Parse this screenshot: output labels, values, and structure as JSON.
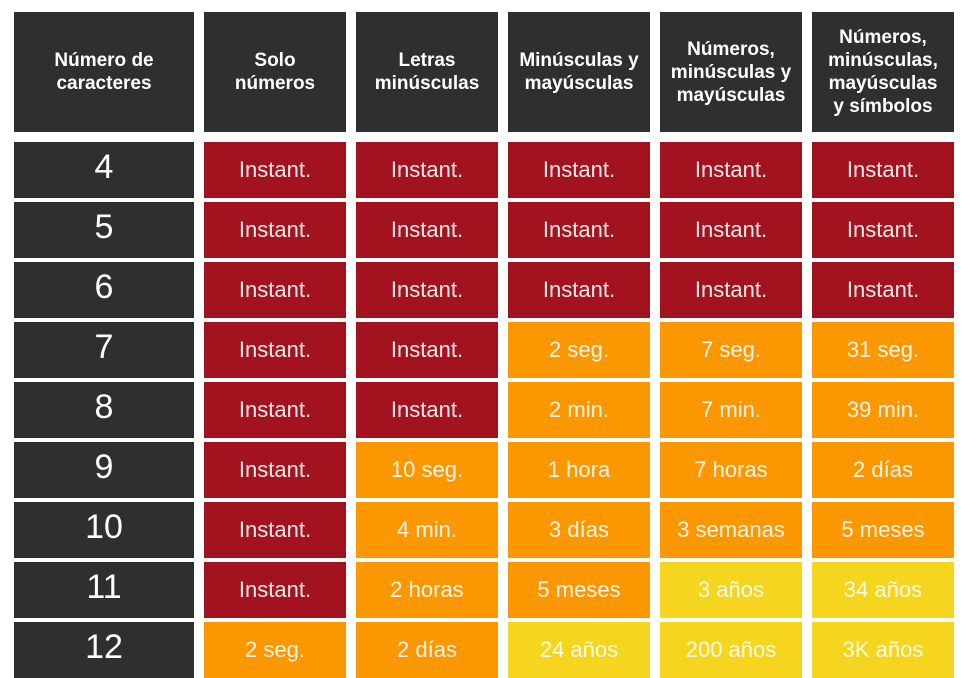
{
  "colors": {
    "header_bg": "#2f2f2f",
    "red": "#a3131f",
    "orange": "#fb9700",
    "yellow": "#f6d51e"
  },
  "headers": [
    "Número de\ncaracteres",
    "Solo\nnúmeros",
    "Letras\nminúsculas",
    "Minúsculas y\nmayúsculas",
    "Números,\nminúsculas y\nmayúsculas",
    "Números,\nminúsculas,\nmayúsculas\ny símbolos"
  ],
  "rows": [
    {
      "chars": "4",
      "cells": [
        [
          "Instant.",
          "red"
        ],
        [
          "Instant.",
          "red"
        ],
        [
          "Instant.",
          "red"
        ],
        [
          "Instant.",
          "red"
        ],
        [
          "Instant.",
          "red"
        ]
      ]
    },
    {
      "chars": "5",
      "cells": [
        [
          "Instant.",
          "red"
        ],
        [
          "Instant.",
          "red"
        ],
        [
          "Instant.",
          "red"
        ],
        [
          "Instant.",
          "red"
        ],
        [
          "Instant.",
          "red"
        ]
      ]
    },
    {
      "chars": "6",
      "cells": [
        [
          "Instant.",
          "red"
        ],
        [
          "Instant.",
          "red"
        ],
        [
          "Instant.",
          "red"
        ],
        [
          "Instant.",
          "red"
        ],
        [
          "Instant.",
          "red"
        ]
      ]
    },
    {
      "chars": "7",
      "cells": [
        [
          "Instant.",
          "red"
        ],
        [
          "Instant.",
          "red"
        ],
        [
          "2 seg.",
          "orange"
        ],
        [
          "7 seg.",
          "orange"
        ],
        [
          "31 seg.",
          "orange"
        ]
      ]
    },
    {
      "chars": "8",
      "cells": [
        [
          "Instant.",
          "red"
        ],
        [
          "Instant.",
          "red"
        ],
        [
          "2 min.",
          "orange"
        ],
        [
          "7 min.",
          "orange"
        ],
        [
          "39 min.",
          "orange"
        ]
      ]
    },
    {
      "chars": "9",
      "cells": [
        [
          "Instant.",
          "red"
        ],
        [
          "10 seg.",
          "orange"
        ],
        [
          "1 hora",
          "orange"
        ],
        [
          "7 horas",
          "orange"
        ],
        [
          "2 días",
          "orange"
        ]
      ]
    },
    {
      "chars": "10",
      "cells": [
        [
          "Instant.",
          "red"
        ],
        [
          "4 min.",
          "orange"
        ],
        [
          "3 días",
          "orange"
        ],
        [
          "3 semanas",
          "orange"
        ],
        [
          "5 meses",
          "orange"
        ]
      ]
    },
    {
      "chars": "11",
      "cells": [
        [
          "Instant.",
          "red"
        ],
        [
          "2 horas",
          "orange"
        ],
        [
          "5 meses",
          "orange"
        ],
        [
          "3 años",
          "yellow"
        ],
        [
          "34 años",
          "yellow"
        ]
      ]
    },
    {
      "chars": "12",
      "cells": [
        [
          "2 seg.",
          "orange"
        ],
        [
          "2 días",
          "orange"
        ],
        [
          "24 años",
          "yellow"
        ],
        [
          "200 años",
          "yellow"
        ],
        [
          "3K años",
          "yellow"
        ]
      ]
    }
  ]
}
